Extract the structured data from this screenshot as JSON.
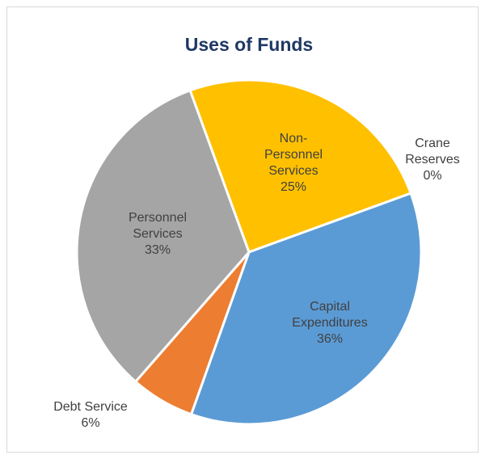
{
  "chart_data": {
    "type": "pie",
    "title": "Uses of Funds",
    "categories": [
      "Non-Personnel Services",
      "Crane Reserves",
      "Capital Expenditures",
      "Debt Service",
      "Personnel Services"
    ],
    "values": [
      25,
      0,
      36,
      6,
      33
    ],
    "value_labels": [
      "25%",
      "0%",
      "36%",
      "6%",
      "33%"
    ],
    "colors": [
      "#ffc000",
      "#4472c4",
      "#5b9bd5",
      "#ed7d31",
      "#a5a5a5"
    ]
  }
}
